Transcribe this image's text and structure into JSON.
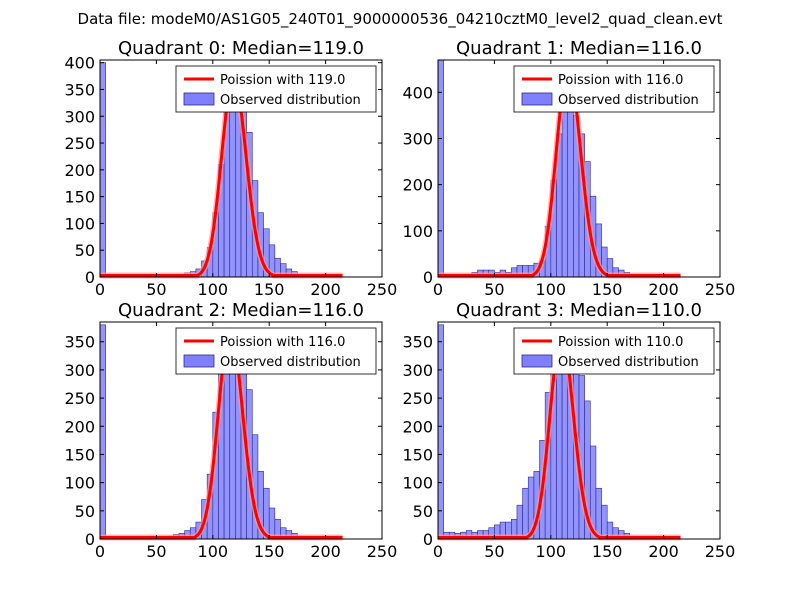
{
  "page": {
    "suptitle": "Data file: modeM0/AS1G05_240T01_9000000536_04210cztM0_level2_quad_clean.evt"
  },
  "colors": {
    "bar_fill": "#8080ff",
    "bar_edge": "#2a2a8a",
    "curve": "#ff0000",
    "curve_highlight": "#ff9a9a",
    "axes": "#000000"
  },
  "chart_data": [
    {
      "type": "bar",
      "title": "Quadrant 0: Median=119.0",
      "median": 119.0,
      "xlim": [
        0,
        250
      ],
      "ylim": [
        0,
        405
      ],
      "xticks": [
        0,
        50,
        100,
        150,
        200,
        250
      ],
      "yticks": [
        0,
        50,
        100,
        150,
        200,
        250,
        300,
        350,
        400
      ],
      "bin_width": 5,
      "bins": [
        [
          0,
          400
        ],
        [
          60,
          5
        ],
        [
          65,
          5
        ],
        [
          70,
          5
        ],
        [
          75,
          8
        ],
        [
          80,
          10
        ],
        [
          85,
          15
        ],
        [
          90,
          30
        ],
        [
          95,
          55
        ],
        [
          100,
          120
        ],
        [
          105,
          210
        ],
        [
          110,
          340
        ],
        [
          115,
          370
        ],
        [
          120,
          360
        ],
        [
          125,
          320
        ],
        [
          130,
          270
        ],
        [
          135,
          180
        ],
        [
          140,
          120
        ],
        [
          145,
          90
        ],
        [
          150,
          60
        ],
        [
          155,
          35
        ],
        [
          160,
          25
        ],
        [
          165,
          15
        ],
        [
          170,
          10
        ],
        [
          175,
          5
        ],
        [
          180,
          3
        ]
      ],
      "legend": {
        "location": "top-right",
        "curve_label": "Poission with 119.0",
        "bar_label": "Observed distribution"
      }
    },
    {
      "type": "bar",
      "title": "Quadrant 1: Median=116.0",
      "median": 116.0,
      "xlim": [
        0,
        250
      ],
      "ylim": [
        0,
        470
      ],
      "xticks": [
        0,
        50,
        100,
        150,
        200,
        250
      ],
      "yticks": [
        0,
        100,
        200,
        300,
        400
      ],
      "bin_width": 5,
      "bins": [
        [
          0,
          470
        ],
        [
          25,
          5
        ],
        [
          30,
          10
        ],
        [
          35,
          15
        ],
        [
          40,
          15
        ],
        [
          45,
          15
        ],
        [
          50,
          10
        ],
        [
          55,
          15
        ],
        [
          60,
          10
        ],
        [
          65,
          20
        ],
        [
          70,
          25
        ],
        [
          75,
          25
        ],
        [
          80,
          25
        ],
        [
          85,
          30
        ],
        [
          90,
          35
        ],
        [
          95,
          110
        ],
        [
          100,
          210
        ],
        [
          105,
          310
        ],
        [
          110,
          420
        ],
        [
          115,
          450
        ],
        [
          120,
          350
        ],
        [
          125,
          310
        ],
        [
          130,
          250
        ],
        [
          135,
          175
        ],
        [
          140,
          115
        ],
        [
          145,
          65
        ],
        [
          150,
          40
        ],
        [
          155,
          20
        ],
        [
          160,
          15
        ],
        [
          165,
          10
        ],
        [
          170,
          5
        ],
        [
          175,
          3
        ],
        [
          180,
          2
        ]
      ],
      "legend": {
        "location": "top-right",
        "curve_label": "Poission with 116.0",
        "bar_label": "Observed distribution"
      }
    },
    {
      "type": "bar",
      "title": "Quadrant 2: Median=116.0",
      "median": 116.0,
      "xlim": [
        0,
        250
      ],
      "ylim": [
        0,
        385
      ],
      "xticks": [
        0,
        50,
        100,
        150,
        200,
        250
      ],
      "yticks": [
        0,
        50,
        100,
        150,
        200,
        250,
        300,
        350
      ],
      "bin_width": 5,
      "bins": [
        [
          0,
          380
        ],
        [
          60,
          5
        ],
        [
          65,
          8
        ],
        [
          70,
          10
        ],
        [
          75,
          15
        ],
        [
          80,
          20
        ],
        [
          85,
          30
        ],
        [
          90,
          70
        ],
        [
          95,
          115
        ],
        [
          100,
          225
        ],
        [
          105,
          305
        ],
        [
          110,
          360
        ],
        [
          115,
          370
        ],
        [
          120,
          350
        ],
        [
          125,
          305
        ],
        [
          130,
          265
        ],
        [
          135,
          185
        ],
        [
          140,
          120
        ],
        [
          145,
          90
        ],
        [
          150,
          55
        ],
        [
          155,
          35
        ],
        [
          160,
          20
        ],
        [
          165,
          15
        ],
        [
          170,
          10
        ],
        [
          175,
          5
        ],
        [
          180,
          3
        ]
      ],
      "legend": {
        "location": "top-right",
        "curve_label": "Poission with 116.0",
        "bar_label": "Observed distribution"
      }
    },
    {
      "type": "bar",
      "title": "Quadrant 3: Median=110.0",
      "median": 110.0,
      "xlim": [
        0,
        250
      ],
      "ylim": [
        0,
        385
      ],
      "xticks": [
        0,
        50,
        100,
        150,
        200,
        250
      ],
      "yticks": [
        0,
        50,
        100,
        150,
        200,
        250,
        300,
        350
      ],
      "bin_width": 5,
      "bins": [
        [
          0,
          380
        ],
        [
          5,
          12
        ],
        [
          10,
          12
        ],
        [
          15,
          10
        ],
        [
          20,
          12
        ],
        [
          25,
          15
        ],
        [
          30,
          12
        ],
        [
          35,
          15
        ],
        [
          40,
          15
        ],
        [
          45,
          20
        ],
        [
          50,
          25
        ],
        [
          55,
          30
        ],
        [
          60,
          30
        ],
        [
          65,
          35
        ],
        [
          70,
          60
        ],
        [
          75,
          90
        ],
        [
          80,
          110
        ],
        [
          85,
          120
        ],
        [
          90,
          175
        ],
        [
          95,
          260
        ],
        [
          100,
          310
        ],
        [
          105,
          360
        ],
        [
          110,
          350
        ],
        [
          115,
          320
        ],
        [
          120,
          310
        ],
        [
          125,
          290
        ],
        [
          130,
          245
        ],
        [
          135,
          165
        ],
        [
          140,
          90
        ],
        [
          145,
          60
        ],
        [
          150,
          30
        ],
        [
          155,
          20
        ],
        [
          160,
          15
        ],
        [
          165,
          10
        ],
        [
          170,
          5
        ],
        [
          175,
          3
        ]
      ],
      "legend": {
        "location": "top-right",
        "curve_label": "Poission with 110.0",
        "bar_label": "Observed distribution"
      }
    }
  ]
}
